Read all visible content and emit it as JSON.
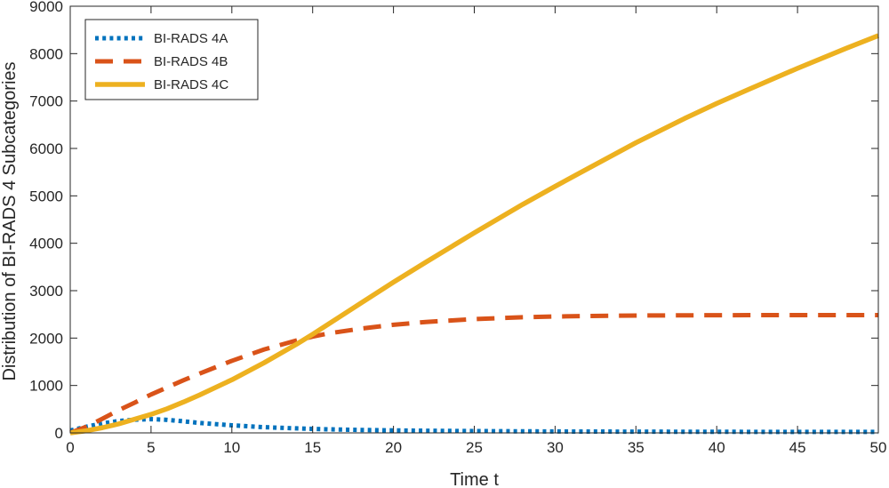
{
  "chart_data": {
    "type": "line",
    "title": "",
    "xlabel": "Time t",
    "ylabel": "Distribution of BI-RADS 4 Subcategories",
    "xlim": [
      0,
      50
    ],
    "ylim": [
      0,
      9000
    ],
    "xticks": [
      0,
      5,
      10,
      15,
      20,
      25,
      30,
      35,
      40,
      45,
      50
    ],
    "yticks": [
      0,
      1000,
      2000,
      3000,
      4000,
      5000,
      6000,
      7000,
      8000,
      9000
    ],
    "legend_position": "top-left",
    "grid": false,
    "x": [
      0,
      1,
      2,
      3,
      4,
      5,
      6,
      7,
      8,
      10,
      12,
      14,
      15,
      16,
      18,
      20,
      22,
      25,
      28,
      30,
      32,
      35,
      38,
      40,
      42,
      45,
      48,
      50
    ],
    "series": [
      {
        "name": "BI-RADS 4A",
        "color": "#0072BD",
        "style": "dotted",
        "values": [
          50,
          130,
          200,
          250,
          280,
          290,
          275,
          245,
          210,
          160,
          120,
          95,
          85,
          75,
          62,
          52,
          45,
          38,
          33,
          30,
          28,
          26,
          24,
          23,
          22,
          21,
          20,
          20
        ]
      },
      {
        "name": "BI-RADS 4B",
        "color": "#D95319",
        "style": "dashed",
        "values": [
          0,
          130,
          300,
          480,
          640,
          810,
          960,
          1110,
          1250,
          1520,
          1760,
          1950,
          2030,
          2100,
          2200,
          2280,
          2340,
          2400,
          2440,
          2455,
          2465,
          2475,
          2480,
          2482,
          2484,
          2485,
          2485,
          2485
        ]
      },
      {
        "name": "BI-RADS 4C",
        "color": "#EDB120",
        "style": "solid",
        "values": [
          0,
          45,
          110,
          190,
          290,
          390,
          510,
          650,
          800,
          1120,
          1480,
          1870,
          2080,
          2300,
          2740,
          3180,
          3600,
          4220,
          4820,
          5200,
          5570,
          6120,
          6630,
          6950,
          7250,
          7690,
          8110,
          8380
        ]
      }
    ]
  }
}
